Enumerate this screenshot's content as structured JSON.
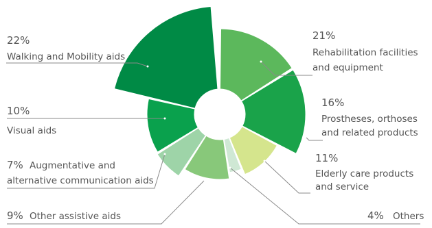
{
  "chart_data": {
    "type": "pie",
    "variant": "rose-donut",
    "slices": [
      {
        "pct": "22%",
        "value": 22,
        "label_lines": [
          "Walking and Mobility aids"
        ],
        "color": "#008a45"
      },
      {
        "pct": "21%",
        "value": 21,
        "label_lines": [
          "Rehabilitation facilities",
          "and equipment"
        ],
        "color": "#5cb85c"
      },
      {
        "pct": "16%",
        "value": 16,
        "label_lines": [
          "Prostheses, orthoses",
          "and related products"
        ],
        "color": "#1aa34a"
      },
      {
        "pct": "11%",
        "value": 11,
        "label_lines": [
          "Elderly care products",
          "and service"
        ],
        "color": "#d5e58d"
      },
      {
        "pct": "4%",
        "value": 4,
        "label_lines": [
          "Others"
        ],
        "color": "#cfe8d4"
      },
      {
        "pct": "9%",
        "value": 9,
        "label_lines": [
          "Other assistive aids"
        ],
        "color": "#88c87a"
      },
      {
        "pct": "7%",
        "value": 7,
        "label_lines": [
          "Augmentative and",
          "alternative communication aids"
        ],
        "color": "#9ed4a8"
      },
      {
        "pct": "10%",
        "value": 10,
        "label_lines": [
          "Visual aids"
        ],
        "color": "#0aa14d"
      }
    ],
    "legend": "none",
    "leader_line_color": "#8a8a8a"
  }
}
